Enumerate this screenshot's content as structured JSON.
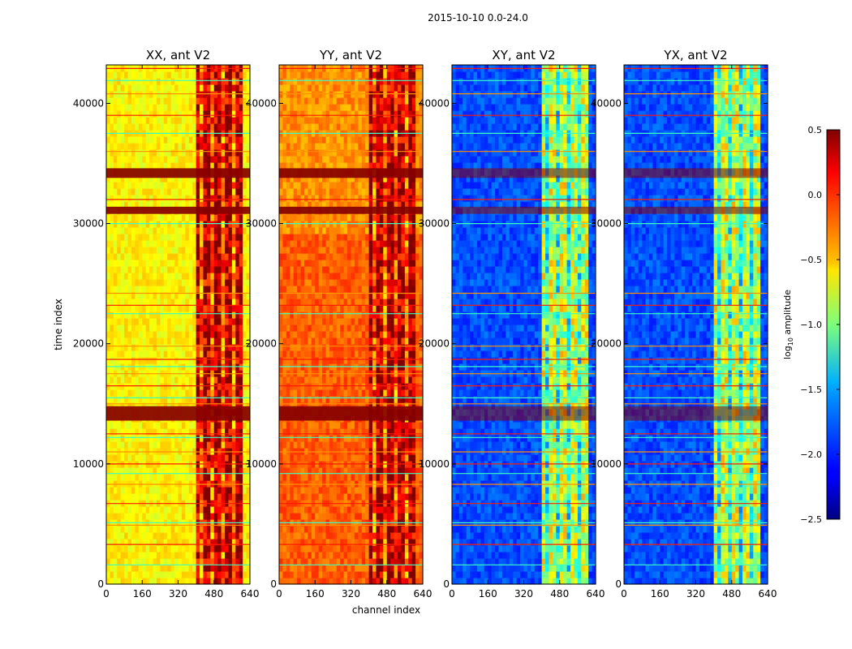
{
  "chart_data": {
    "type": "heatmap",
    "suptitle": "2015-10-10 0.0-24.0",
    "xlabel": "channel index",
    "ylabel": "time index",
    "xlim": [
      0,
      640
    ],
    "ylim": [
      0,
      43200
    ],
    "x_ticks": [
      0,
      160,
      320,
      480,
      640
    ],
    "x_tick_labels": [
      "0",
      "160",
      "320",
      "480",
      "640"
    ],
    "y_ticks": [
      0,
      10000,
      20000,
      30000,
      40000
    ],
    "y_tick_labels": [
      "0",
      "10000",
      "20000",
      "30000",
      "40000"
    ],
    "colormap": "jet",
    "colorbar": {
      "label": "log10 amplitude",
      "label_main": "log",
      "label_sub": "10",
      "label_rest": " amplitude",
      "vmin": -2.5,
      "vmax": 0.5,
      "ticks": [
        0.5,
        0.0,
        -0.5,
        -1.0,
        -1.5,
        -2.0,
        -2.5
      ],
      "tick_labels": [
        "0.5",
        "0.0",
        "−0.5",
        "−1.0",
        "−1.5",
        "−2.0",
        "−2.5"
      ]
    },
    "panels": [
      {
        "title": "XX, ant V2",
        "background_level": -0.6,
        "bright_band_level": 0.3,
        "band_channels": [
          405,
          600
        ],
        "hot_rows": [
          [
            13600,
            14800
          ],
          [
            30800,
            31400
          ],
          [
            33800,
            34600
          ]
        ]
      },
      {
        "title": "YY, ant V2",
        "background_level": -0.3,
        "bright_band_level": 0.35,
        "band_channels": [
          405,
          600
        ],
        "hot_rows": [
          [
            13600,
            14800
          ],
          [
            30800,
            31400
          ],
          [
            33800,
            34600
          ]
        ]
      },
      {
        "title": "XY, ant V2",
        "background_level": -1.9,
        "bright_band_level": -0.8,
        "band_channels": [
          405,
          600
        ],
        "hot_rows": [
          [
            13600,
            14800
          ],
          [
            30800,
            31400
          ],
          [
            33800,
            34600
          ]
        ]
      },
      {
        "title": "YX, ant V2",
        "background_level": -1.9,
        "bright_band_level": -0.8,
        "band_channels": [
          405,
          600
        ],
        "hot_rows": [
          [
            13600,
            14800
          ],
          [
            30800,
            31400
          ],
          [
            33800,
            34600
          ]
        ]
      }
    ],
    "flagged_time_rows": [
      1600,
      3300,
      4900,
      5100,
      6700,
      8300,
      9200,
      10000,
      11000,
      12200,
      12500,
      15000,
      15500,
      16500,
      17500,
      18100,
      18700,
      19800,
      22500,
      23200,
      24200,
      30000,
      32000,
      36000,
      37500,
      39000,
      40800,
      41900,
      42900
    ]
  }
}
